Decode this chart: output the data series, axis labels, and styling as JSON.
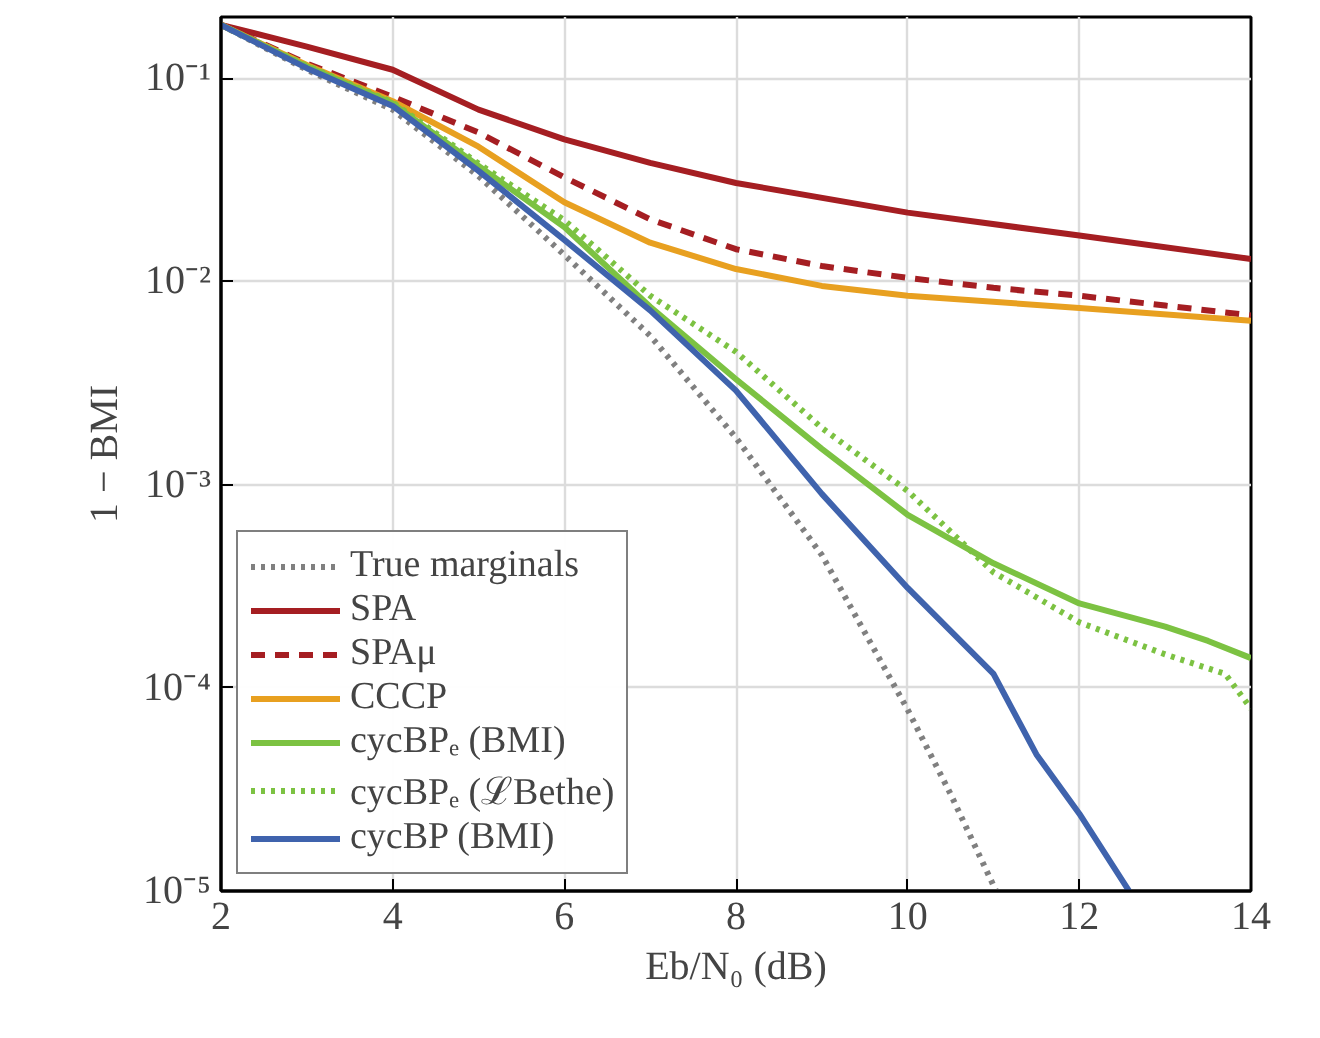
{
  "chart_data": {
    "type": "line",
    "xlabel": "Eb/N₀ (dB)",
    "ylabel": "1 − BMI",
    "log": "y",
    "grid": true,
    "legend": "bottom left",
    "xlim": [
      2,
      14
    ],
    "xticks": [
      2,
      4,
      6,
      8,
      10,
      12,
      14
    ],
    "ylim": [
      1e-05,
      0.2
    ],
    "yticks": [
      {
        "value": 1e-05,
        "label": "10⁻⁵"
      },
      {
        "value": 0.0001,
        "label": "10⁻⁴"
      },
      {
        "value": 0.001,
        "label": "10⁻³"
      },
      {
        "value": 0.01,
        "label": "10⁻²"
      },
      {
        "value": 0.1,
        "label": "10⁻¹"
      }
    ],
    "series": [
      {
        "name": "True marginals",
        "color": "#808080",
        "line_style": "dotted",
        "x": [
          2,
          3,
          4,
          5,
          6,
          7,
          8,
          9,
          10,
          10.5,
          11.03
        ],
        "values": [
          0.183,
          0.11,
          0.07,
          0.033,
          0.0135,
          0.0054,
          0.0017,
          0.00045,
          7.8e-05,
          3e-05,
          1e-05
        ]
      },
      {
        "name": "SPA",
        "color": "#a51e22",
        "line_style": "solid",
        "x": [
          2,
          3,
          4,
          5,
          6,
          7,
          8,
          10,
          12,
          14
        ],
        "values": [
          0.183,
          0.143,
          0.11,
          0.07,
          0.05,
          0.0383,
          0.0305,
          0.0218,
          0.0168,
          0.0129
        ]
      },
      {
        "name": "SPAμ",
        "color": "#a51e22",
        "line_style": "dashed",
        "x": [
          2,
          3,
          4,
          5,
          6,
          7,
          8,
          9,
          10,
          11,
          12,
          13,
          14
        ],
        "values": [
          0.183,
          0.118,
          0.081,
          0.054,
          0.0325,
          0.0202,
          0.0144,
          0.0119,
          0.0104,
          0.0093,
          0.0085,
          0.0076,
          0.0068
        ]
      },
      {
        "name": "CCCP",
        "color": "#e8a020",
        "line_style": "solid",
        "x": [
          2,
          3,
          4,
          5,
          6,
          7,
          8,
          9,
          10,
          12,
          14
        ],
        "values": [
          0.183,
          0.116,
          0.077,
          0.046,
          0.0245,
          0.0155,
          0.0115,
          0.0095,
          0.0085,
          0.0074,
          0.0064
        ]
      },
      {
        "name": "cycBPₑ (BMI)",
        "color": "#7cc242",
        "line_style": "solid",
        "x": [
          2,
          3,
          4,
          5,
          6,
          7,
          8,
          9,
          10,
          11,
          12,
          13,
          13.5,
          14
        ],
        "values": [
          0.183,
          0.114,
          0.075,
          0.037,
          0.0185,
          0.0075,
          0.0033,
          0.0015,
          0.00071,
          0.00041,
          0.00026,
          0.0002,
          0.00017,
          0.00014
        ]
      },
      {
        "name": "cycBPₑ (ℒBethe)",
        "color": "#7cc242",
        "line_style": "dotted",
        "x": [
          2,
          3,
          4,
          5,
          6,
          7,
          8,
          9,
          10,
          11,
          12,
          13,
          13.7,
          14
        ],
        "values": [
          0.183,
          0.115,
          0.076,
          0.038,
          0.02,
          0.0085,
          0.0045,
          0.0019,
          0.00093,
          0.00037,
          0.00021,
          0.000146,
          0.000117,
          7.9e-05
        ]
      },
      {
        "name": "cycBP (BMI)",
        "color": "#3f63ad",
        "line_style": "solid",
        "x": [
          2,
          3,
          4,
          5,
          6,
          7,
          8,
          9,
          10,
          11,
          11.5,
          12,
          12.58
        ],
        "values": [
          0.183,
          0.112,
          0.073,
          0.035,
          0.016,
          0.0072,
          0.0029,
          0.0009,
          0.00031,
          0.000117,
          4.7e-05,
          2.4e-05,
          1e-05
        ]
      }
    ]
  }
}
